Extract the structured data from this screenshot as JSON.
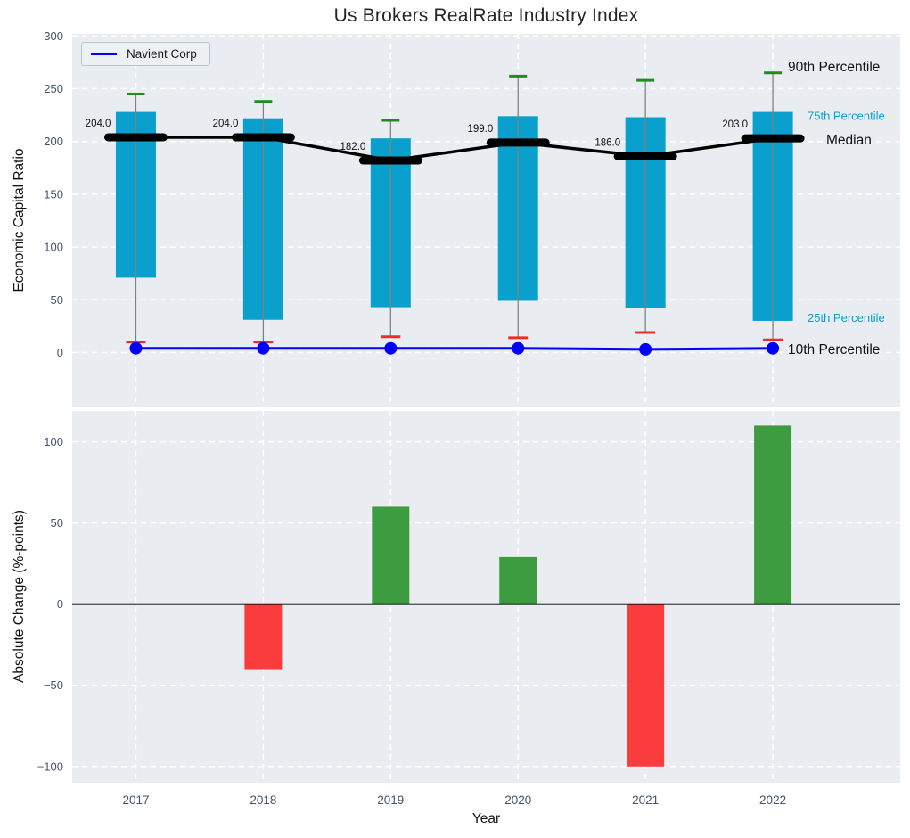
{
  "colors": {
    "plot_background": "#e9edf1",
    "grid": "#ffffff",
    "box_fill": "#0aa0cd",
    "p90_cap": "#1f8b1f",
    "p10_cap": "#ee2b2b",
    "median_line": "#000000",
    "company_line": "#0000ff",
    "whisker": "#808080",
    "tick_label": "#44536e",
    "positive_bar": "#3d9c40",
    "negative_bar": "#fa3c3c",
    "annotation_dark": "#111111",
    "annotation_cyan": "#0a9fd1",
    "zero_line": "#000000"
  },
  "chart_data": [
    {
      "type": "box",
      "title": "Us Brokers RealRate Industry Index",
      "ylabel": "Economic Capital Ratio",
      "categories": [
        "2017",
        "2018",
        "2019",
        "2020",
        "2021",
        "2022"
      ],
      "percentiles": {
        "p90": [
          245,
          238,
          220,
          262,
          258,
          265
        ],
        "p75": [
          228,
          222,
          203,
          224,
          223,
          228
        ],
        "median": [
          204,
          204,
          182,
          199,
          186,
          203
        ],
        "p25": [
          71,
          31,
          43,
          49,
          42,
          30
        ],
        "p10": [
          10,
          10,
          15,
          14,
          19,
          12
        ]
      },
      "median_labels": [
        "204.0",
        "204.0",
        "182.0",
        "199.0",
        "186.0",
        "203.0"
      ],
      "company_series": {
        "name": "Navient Corp",
        "values": [
          4,
          4,
          4,
          4,
          3,
          4
        ]
      },
      "annotations": [
        {
          "series": "p90",
          "text": "90th Percentile"
        },
        {
          "series": "p75",
          "text": "75th Percentile"
        },
        {
          "series": "median",
          "text": "Median"
        },
        {
          "series": "p25",
          "text": "25th Percentile"
        },
        {
          "series": "p10",
          "text": "10th Percentile"
        }
      ],
      "yticks": [
        0,
        50,
        100,
        150,
        200,
        250,
        300
      ],
      "ylim": [
        -52,
        302
      ],
      "xlim": [
        -0.5,
        6.0
      ],
      "grid": true,
      "legend_position": "upper left"
    },
    {
      "type": "bar",
      "xlabel": "Year",
      "ylabel": "Absolute Change (%-points)",
      "categories": [
        "2017",
        "2018",
        "2019",
        "2020",
        "2021",
        "2022"
      ],
      "values": [
        0,
        -40,
        60,
        29,
        -100,
        110
      ],
      "yticks": [
        -100,
        -50,
        0,
        50,
        100
      ],
      "ylim": [
        -110,
        119
      ],
      "xlim": [
        -0.5,
        6.0
      ],
      "grid": true
    }
  ]
}
